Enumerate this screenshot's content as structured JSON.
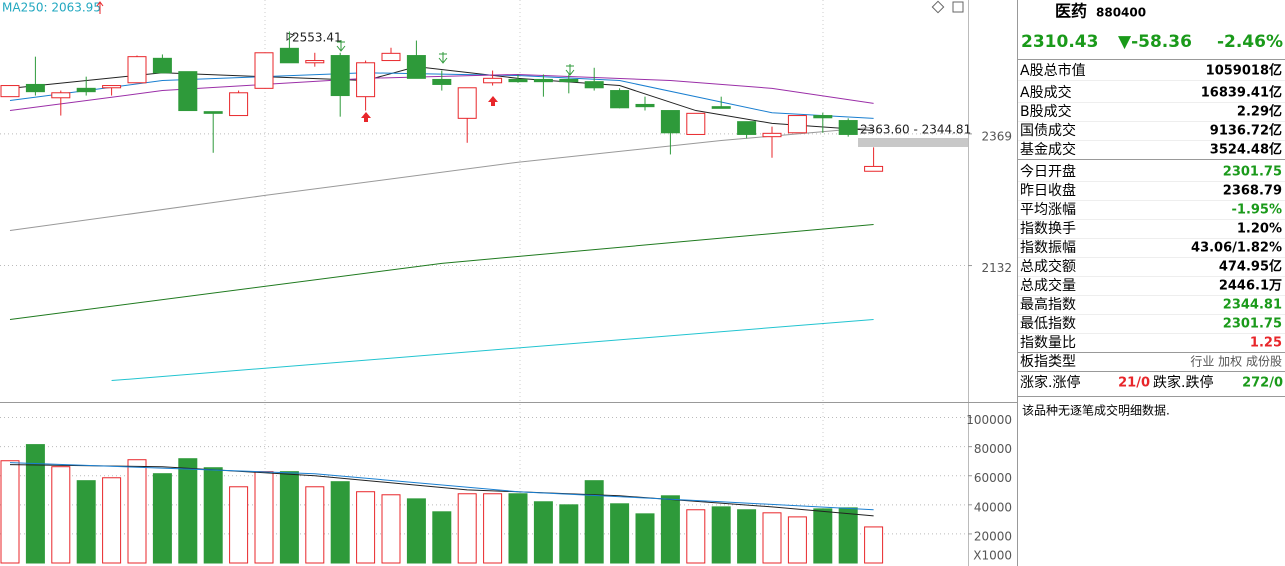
{
  "chart_data": [
    {
      "type": "candlestick",
      "annotations": {
        "ma_label": "MA250: 2063.95",
        "high_label": "2553.41",
        "range_label": "2363.60 - 2344.81"
      },
      "open": [
        2436,
        2458,
        2434,
        2451,
        2452,
        2461,
        2505,
        2481,
        2409,
        2402,
        2451,
        2523,
        2497,
        2510,
        2436,
        2501,
        2510,
        2467,
        2397,
        2461,
        2467,
        2467,
        2467,
        2463,
        2447,
        2422,
        2411,
        2368,
        2418,
        2391,
        2364,
        2371,
        2402,
        2393,
        2301.75
      ],
      "high": [
        2456,
        2508,
        2447,
        2472,
        2456,
        2510,
        2512,
        2481,
        2409,
        2447,
        2515,
        2553.41,
        2515,
        2515,
        2501,
        2524,
        2537,
        2483,
        2452,
        2483,
        2476,
        2476,
        2476,
        2488,
        2451,
        2436,
        2411,
        2406,
        2436,
        2391,
        2382,
        2402,
        2407,
        2397,
        2344.81
      ],
      "low": [
        2436,
        2438,
        2402,
        2438,
        2438,
        2461,
        2478,
        2411,
        2335,
        2402,
        2451,
        2497,
        2490,
        2400,
        2411,
        2501,
        2469,
        2447,
        2353,
        2456,
        2461,
        2436,
        2442,
        2447,
        2415,
        2411,
        2332,
        2368,
        2415,
        2361,
        2326,
        2371,
        2371,
        2364,
        2301.75
      ],
      "close": [
        2456,
        2445,
        2443,
        2445,
        2456,
        2508,
        2479,
        2411,
        2406,
        2443,
        2515,
        2497,
        2501,
        2438,
        2497,
        2514,
        2469,
        2458,
        2452,
        2469,
        2463,
        2463,
        2463,
        2452,
        2416,
        2418,
        2371,
        2406,
        2415,
        2368,
        2370,
        2402,
        2398,
        2368,
        2310.43
      ],
      "up_color": "#e8262a",
      "down_color": "#2e9a3a",
      "lines": [
        {
          "color": "#999999",
          "x": [
            0,
            10,
            20,
            28,
            34
          ],
          "values": [
            2195,
            2258,
            2318,
            2357,
            2381
          ]
        },
        {
          "color": "#1f7a1f",
          "x": [
            0,
            17,
            34
          ],
          "values": [
            2035,
            2136,
            2206
          ]
        },
        {
          "color": "#22c4d0",
          "x": [
            4,
            34
          ],
          "values": [
            1925,
            2035
          ]
        },
        {
          "color": "#222222",
          "x": [
            0,
            6,
            14,
            16,
            20,
            24,
            27,
            30,
            34
          ],
          "values": [
            2451,
            2479,
            2465,
            2490,
            2469,
            2456,
            2411,
            2388,
            2375
          ]
        },
        {
          "color": "#1a7fd0",
          "x": [
            0,
            6,
            14,
            20,
            24,
            30,
            34
          ],
          "values": [
            2429,
            2465,
            2479,
            2474,
            2465,
            2407,
            2397
          ]
        },
        {
          "color": "#9b2fa8",
          "x": [
            0,
            6,
            14,
            20,
            26,
            30,
            34
          ],
          "values": [
            2411,
            2447,
            2469,
            2476,
            2465,
            2451,
            2424
          ]
        }
      ],
      "ylim": [
        1890,
        2610
      ],
      "yticks": [
        2132,
        2369
      ],
      "grid": true
    },
    {
      "type": "bar",
      "y_unit_label": "X1000",
      "values": [
        70300,
        81400,
        66200,
        56600,
        58600,
        71000,
        61400,
        71700,
        65500,
        52400,
        62800,
        62800,
        52400,
        55900,
        49000,
        46900,
        44100,
        35200,
        47600,
        47600,
        47600,
        42100,
        40000,
        56600,
        40700,
        33800,
        46200,
        36600,
        38600,
        36600,
        34500,
        31700,
        37200,
        37900,
        24800
      ],
      "lines": [
        {
          "color": "#222222",
          "x": [
            0,
            6,
            12,
            18,
            24,
            30,
            34
          ],
          "values": [
            67600,
            66200,
            60000,
            50300,
            46200,
            38600,
            32400
          ]
        },
        {
          "color": "#1a7fd0",
          "x": [
            0,
            12,
            20,
            28,
            34
          ],
          "values": [
            69000,
            61400,
            49000,
            42100,
            36600
          ]
        }
      ],
      "ylim": [
        0,
        110000
      ],
      "yticks": [
        20000,
        40000,
        60000,
        80000,
        100000
      ],
      "grid": true
    }
  ],
  "panel": {
    "name": "医药",
    "code": "880400",
    "price": "2310.43",
    "change": "▼-58.36",
    "pct": "-2.46%",
    "rows": [
      {
        "label": "A股总市值",
        "value": "1059018亿",
        "color": "#000000"
      },
      {
        "label": "A股成交",
        "value": "16839.41亿",
        "color": "#000000"
      },
      {
        "label": "B股成交",
        "value": "2.29亿",
        "color": "#000000"
      },
      {
        "label": "国债成交",
        "value": "9136.72亿",
        "color": "#000000"
      },
      {
        "label": "基金成交",
        "value": "3524.48亿",
        "color": "#000000"
      },
      {
        "label": "今日开盘",
        "value": "2301.75",
        "color": "#1a9a1a"
      },
      {
        "label": "昨日收盘",
        "value": "2368.79",
        "color": "#000000"
      },
      {
        "label": "平均涨幅",
        "value": "-1.95%",
        "color": "#1a9a1a"
      },
      {
        "label": "指数换手",
        "value": "1.20%",
        "color": "#000000"
      },
      {
        "label": "指数振幅",
        "value": "43.06/1.82%",
        "color": "#000000"
      },
      {
        "label": "总成交额",
        "value": "474.95亿",
        "color": "#000000"
      },
      {
        "label": "总成交量",
        "value": "2446.1万",
        "color": "#000000"
      },
      {
        "label": "最高指数",
        "value": "2344.81",
        "color": "#1a9a1a"
      },
      {
        "label": "最低指数",
        "value": "2301.75",
        "color": "#1a9a1a"
      },
      {
        "label": "指数量比",
        "value": "1.25",
        "color": "#e8262a"
      },
      {
        "label": "板指类型",
        "value": "行业 加权 成份股",
        "color": "#555555"
      }
    ],
    "breadth": {
      "up_label": "涨家.涨停",
      "up": "21/0",
      "down_label": "跌家.跌停",
      "down": "272/0"
    },
    "message": "该品种无逐笔成交明细数据."
  }
}
